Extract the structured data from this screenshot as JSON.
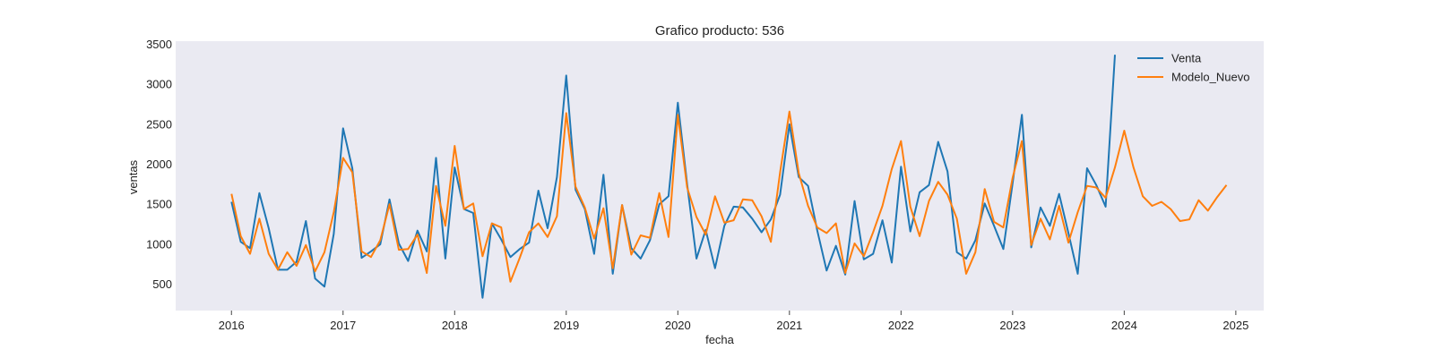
{
  "chart_data": {
    "type": "line",
    "title": "Grafico producto: 536",
    "xlabel": "fecha",
    "ylabel": "ventas",
    "xlim": [
      "2015-07",
      "2025-04"
    ],
    "ylim": [
      170,
      3540
    ],
    "x_ticks": [
      "2016",
      "2017",
      "2018",
      "2019",
      "2020",
      "2021",
      "2022",
      "2023",
      "2024",
      "2025"
    ],
    "y_ticks": [
      500,
      1000,
      1500,
      2000,
      2500,
      3000,
      3500
    ],
    "grid": false,
    "legend_position": "top-right",
    "colors": {
      "background": "#eaeaf2",
      "Venta": "#1f77b4",
      "Modelo_Nuevo": "#ff7f0e"
    },
    "series": [
      {
        "name": "Venta",
        "start": "2016-01",
        "values": [
          1530,
          1030,
          950,
          1640,
          1200,
          680,
          680,
          780,
          1290,
          570,
          470,
          1130,
          2450,
          1950,
          830,
          910,
          1000,
          1560,
          1010,
          790,
          1170,
          910,
          2080,
          820,
          1960,
          1440,
          1390,
          330,
          1260,
          1060,
          840,
          940,
          1020,
          1670,
          1200,
          1840,
          3110,
          1680,
          1440,
          880,
          1870,
          630,
          1490,
          950,
          820,
          1050,
          1500,
          1600,
          2770,
          1750,
          820,
          1180,
          700,
          1230,
          1470,
          1460,
          1320,
          1150,
          1310,
          1620,
          2500,
          1840,
          1730,
          1170,
          670,
          980,
          620,
          1540,
          810,
          880,
          1300,
          770,
          1970,
          1160,
          1650,
          1740,
          2280,
          1910,
          900,
          820,
          1050,
          1510,
          1230,
          940,
          1760,
          2620,
          960,
          1460,
          1230,
          1630,
          1140,
          630,
          1950,
          1740,
          1470,
          3370
        ]
      },
      {
        "name": "Modelo_Nuevo",
        "start": "2016-01",
        "values": [
          1630,
          1100,
          880,
          1320,
          880,
          680,
          900,
          730,
          990,
          660,
          900,
          1400,
          2080,
          1900,
          910,
          840,
          1050,
          1500,
          930,
          940,
          1120,
          640,
          1730,
          1230,
          2230,
          1440,
          1510,
          850,
          1260,
          1210,
          530,
          830,
          1150,
          1260,
          1090,
          1350,
          2640,
          1720,
          1460,
          1070,
          1450,
          700,
          1490,
          870,
          1110,
          1080,
          1640,
          1090,
          2620,
          1710,
          1340,
          1120,
          1600,
          1270,
          1300,
          1560,
          1550,
          1350,
          1030,
          1900,
          2660,
          1890,
          1480,
          1210,
          1140,
          1260,
          640,
          1010,
          850,
          1150,
          1480,
          1940,
          2290,
          1470,
          1100,
          1540,
          1780,
          1620,
          1320,
          630,
          900,
          1690,
          1280,
          1210,
          1830,
          2290,
          990,
          1320,
          1060,
          1480,
          1020,
          1400,
          1730,
          1710,
          1580,
          1960,
          2420,
          1960,
          1600,
          1480,
          1530,
          1440,
          1290,
          1310,
          1550,
          1420,
          1590,
          1740
        ]
      }
    ]
  }
}
